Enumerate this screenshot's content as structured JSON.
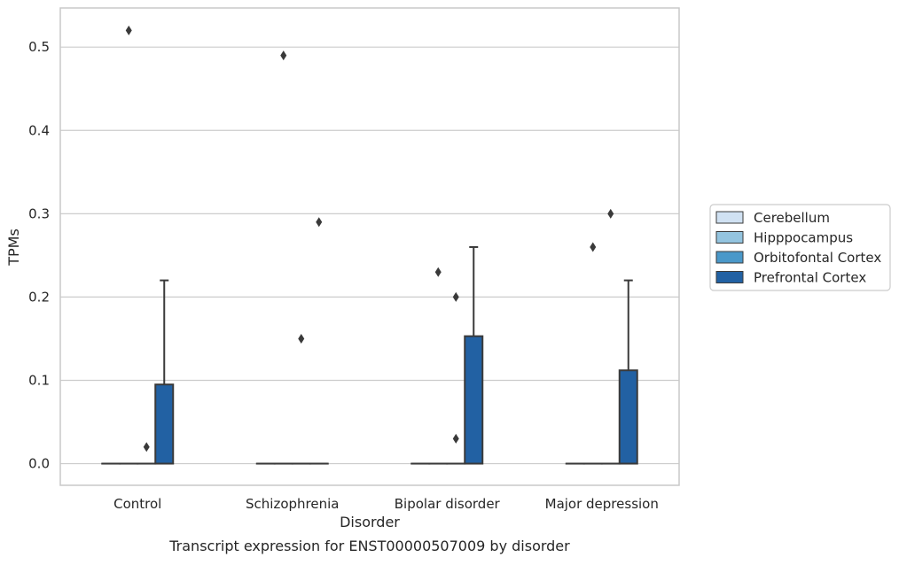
{
  "chart_data": {
    "type": "box",
    "xlabel": "Disorder",
    "ylabel": "TPMs",
    "caption": "Transcript expression for ENST00000507009 by disorder",
    "ylim": [
      -0.026,
      0.547
    ],
    "yticks": [
      "0.0",
      "0.1",
      "0.2",
      "0.3",
      "0.4",
      "0.5"
    ],
    "ytick_values": [
      0.0,
      0.1,
      0.2,
      0.3,
      0.4,
      0.5
    ],
    "grid": "horizontal",
    "legend_placement": "right",
    "categories": [
      "Control",
      "Schizophrenia",
      "Bipolar disorder",
      "Major depression"
    ],
    "series": [
      {
        "name": "Cerebellum",
        "color": "#d0e1f2",
        "boxes": [
          {
            "min": 0,
            "q1": 0,
            "median": 0,
            "q3": 0,
            "max": 0,
            "outliers": []
          },
          {
            "min": 0,
            "q1": 0,
            "median": 0,
            "q3": 0,
            "max": 0,
            "outliers": []
          },
          {
            "min": 0,
            "q1": 0,
            "median": 0,
            "q3": 0,
            "max": 0,
            "outliers": []
          },
          {
            "min": 0,
            "q1": 0,
            "median": 0,
            "q3": 0,
            "max": 0,
            "outliers": []
          }
        ]
      },
      {
        "name": "Hipppocampus",
        "color": "#94c4df",
        "boxes": [
          {
            "min": 0,
            "q1": 0,
            "median": 0,
            "q3": 0,
            "max": 0,
            "outliers": [
              0.52
            ]
          },
          {
            "min": 0,
            "q1": 0,
            "median": 0,
            "q3": 0,
            "max": 0,
            "outliers": [
              0.49
            ]
          },
          {
            "min": 0,
            "q1": 0,
            "median": 0,
            "q3": 0,
            "max": 0,
            "outliers": [
              0.23
            ]
          },
          {
            "min": 0,
            "q1": 0,
            "median": 0,
            "q3": 0,
            "max": 0,
            "outliers": [
              0.26
            ]
          }
        ]
      },
      {
        "name": "Orbitofontal Cortex",
        "color": "#4a98c9",
        "boxes": [
          {
            "min": 0,
            "q1": 0,
            "median": 0,
            "q3": 0,
            "max": 0,
            "outliers": [
              0.02
            ]
          },
          {
            "min": 0,
            "q1": 0,
            "median": 0,
            "q3": 0,
            "max": 0,
            "outliers": [
              0.15
            ]
          },
          {
            "min": 0,
            "q1": 0,
            "median": 0,
            "q3": 0,
            "max": 0,
            "outliers": [
              0.2,
              0.03
            ]
          },
          {
            "min": 0,
            "q1": 0,
            "median": 0,
            "q3": 0,
            "max": 0,
            "outliers": [
              0.3
            ]
          }
        ]
      },
      {
        "name": "Prefrontal Cortex",
        "color": "#2261a3",
        "boxes": [
          {
            "min": 0,
            "q1": 0,
            "median": 0,
            "q3": 0.095,
            "max": 0.22,
            "outliers": []
          },
          {
            "min": 0,
            "q1": 0,
            "median": 0,
            "q3": 0,
            "max": 0,
            "outliers": [
              0.29
            ]
          },
          {
            "min": 0,
            "q1": 0,
            "median": 0,
            "q3": 0.153,
            "max": 0.26,
            "outliers": []
          },
          {
            "min": 0,
            "q1": 0,
            "median": 0,
            "q3": 0.112,
            "max": 0.22,
            "outliers": []
          }
        ]
      }
    ]
  }
}
